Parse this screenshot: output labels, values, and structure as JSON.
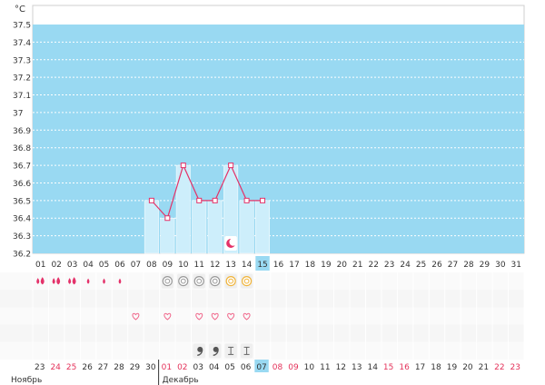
{
  "unit_label": "°C",
  "chart_data": {
    "type": "line",
    "y_unit": "°C",
    "ylim": [
      36.2,
      37.5
    ],
    "yticks": [
      "36.2",
      "36.3",
      "36.4",
      "36.5",
      "36.6",
      "36.7",
      "36.8",
      "36.9",
      "37",
      "37.1",
      "37.2",
      "37.3",
      "37.4",
      "37.5"
    ],
    "x": [
      "01",
      "02",
      "03",
      "04",
      "05",
      "06",
      "07",
      "08",
      "09",
      "10",
      "11",
      "12",
      "13",
      "14",
      "15",
      "16",
      "17",
      "18",
      "19",
      "20",
      "21",
      "22",
      "23",
      "24",
      "25",
      "26",
      "27",
      "28",
      "29",
      "30",
      "31"
    ],
    "current_day": "15",
    "series": [
      {
        "values": [
          null,
          null,
          null,
          null,
          null,
          null,
          null,
          36.5,
          36.4,
          36.7,
          36.5,
          36.5,
          36.7,
          36.5,
          36.5,
          null,
          null,
          null,
          null,
          null,
          null,
          null,
          null,
          null,
          null,
          null,
          null,
          null,
          null,
          null,
          null
        ]
      }
    ],
    "grid": true
  },
  "marker_rows": {
    "bleeding_days": [
      "01",
      "02",
      "03",
      "04",
      "05",
      "06"
    ],
    "bleeding_levels": [
      2,
      2,
      2,
      1,
      1,
      1
    ],
    "indicator_days": [
      "09",
      "10",
      "11",
      "12",
      "13",
      "14"
    ],
    "indicator_types": [
      "gray",
      "gray",
      "gray",
      "gray",
      "orange",
      "orange"
    ],
    "heart_days": [
      "07",
      "09",
      "11",
      "12",
      "13",
      "14"
    ],
    "moon_day": "13",
    "sperm_days": [
      "11",
      "12"
    ],
    "tally_days": [
      "13",
      "14"
    ]
  },
  "calendar": {
    "dates": [
      "23",
      "24",
      "25",
      "26",
      "27",
      "28",
      "29",
      "30",
      "01",
      "02",
      "03",
      "04",
      "05",
      "06",
      "07",
      "08",
      "09",
      "10",
      "11",
      "12",
      "13",
      "14",
      "15",
      "16",
      "17",
      "18",
      "19",
      "20",
      "21",
      "22",
      "23"
    ],
    "red_dates": [
      1,
      2,
      8,
      9,
      15,
      16,
      22,
      23,
      29,
      30
    ],
    "today_index": 14,
    "month_labels": [
      "Ноябрь",
      "Декабрь"
    ]
  },
  "colors": {
    "chart_bg": "#99d9f2",
    "grid_line": "#ffffff",
    "bar": "#cdeefb",
    "line": "#e43268",
    "marker_point": "#e43268",
    "drop": "#e4326a",
    "heart": "#f0668a",
    "gray_circle": "#9a9a9a",
    "orange_circle": "#f0b43a",
    "today_bg": "#99d9f2",
    "red_text": "#e4325a",
    "axis_text": "#333333"
  }
}
